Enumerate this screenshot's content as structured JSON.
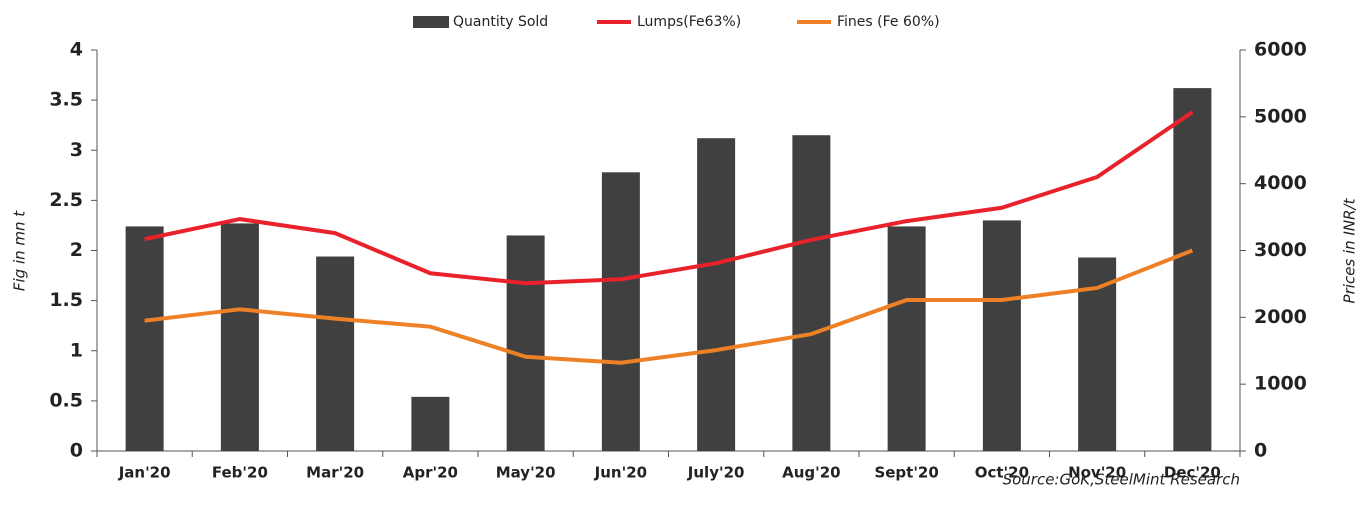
{
  "chart_data": {
    "type": "bar-line",
    "categories": [
      "Jan'20",
      "Feb'20",
      "Mar'20",
      "Apr'20",
      "May'20",
      "Jun'20",
      "July'20",
      "Aug'20",
      "Sept'20",
      "Oct'20",
      "Nov'20",
      "Dec'20"
    ],
    "series": [
      {
        "name": "Quantity Sold",
        "type": "bar",
        "color": "#404040",
        "axis": "y",
        "values": [
          2.24,
          2.27,
          1.94,
          0.54,
          2.15,
          2.78,
          3.12,
          3.15,
          2.24,
          2.3,
          1.93,
          3.62
        ]
      },
      {
        "name": "Lumps(Fe63%)",
        "type": "line",
        "color": "#e8212a",
        "axis": "y2",
        "values": [
          3170,
          3470,
          3260,
          2660,
          2510,
          2570,
          2810,
          3160,
          3440,
          3640,
          4100,
          5070
        ]
      },
      {
        "name": "Fines (Fe 60%)",
        "type": "line",
        "color": "#ee8126",
        "axis": "y2",
        "values": [
          1950,
          2120,
          1980,
          1860,
          1410,
          1320,
          1510,
          1750,
          2260,
          2260,
          2440,
          3000
        ]
      }
    ],
    "ylabel": "Fig in mn t",
    "y2label": "Prices in INR/t",
    "ylim": [
      0,
      4
    ],
    "yticks": [
      0,
      0.5,
      1,
      1.5,
      2,
      2.5,
      3,
      3.5,
      4
    ],
    "y2lim": [
      0,
      6000
    ],
    "y2ticks": [
      0,
      1000,
      2000,
      3000,
      4000,
      5000,
      6000
    ],
    "source": "Source:GoK,SteelMint Research",
    "legend": "top"
  }
}
